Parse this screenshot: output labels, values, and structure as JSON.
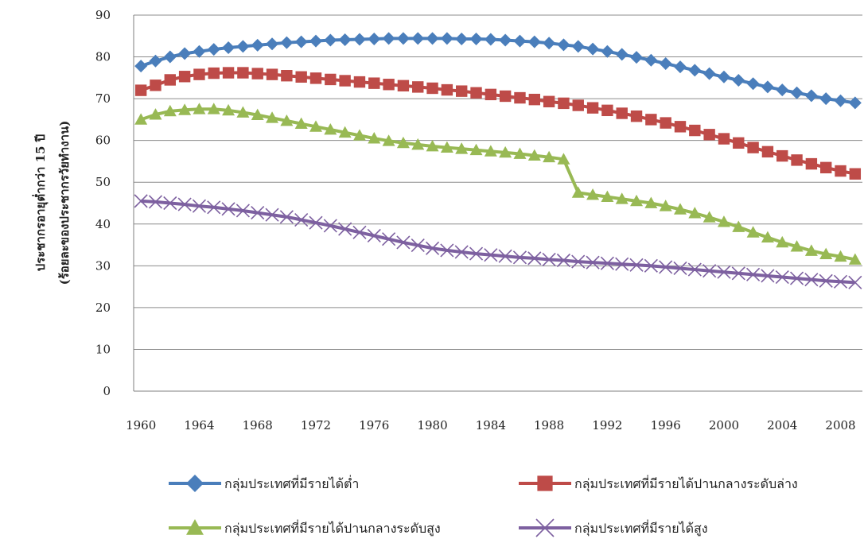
{
  "chart_data": {
    "type": "line",
    "title": "",
    "xlabel": "",
    "ylabel_line1": "ประชากรอายุต่ำกว่า 15 ปี",
    "ylabel_line2": "(ร้อยละของประชากรวัยทำงาน)",
    "x": [
      1960,
      1961,
      1962,
      1963,
      1964,
      1965,
      1966,
      1967,
      1968,
      1969,
      1970,
      1971,
      1972,
      1973,
      1974,
      1975,
      1976,
      1977,
      1978,
      1979,
      1980,
      1981,
      1982,
      1983,
      1984,
      1985,
      1986,
      1987,
      1988,
      1989,
      1990,
      1991,
      1992,
      1993,
      1994,
      1995,
      1996,
      1997,
      1998,
      1999,
      2000,
      2001,
      2002,
      2003,
      2004,
      2005,
      2006,
      2007,
      2008,
      2009
    ],
    "x_tick_labels": [
      "1960",
      "1964",
      "1968",
      "1972",
      "1976",
      "1980",
      "1984",
      "1988",
      "1992",
      "1996",
      "2000",
      "2004",
      "2008"
    ],
    "ylim": [
      0,
      90
    ],
    "y_ticks": [
      0,
      10,
      20,
      30,
      40,
      50,
      60,
      70,
      80,
      90
    ],
    "grid": true,
    "legend_position": "bottom",
    "series": [
      {
        "name": "กลุ่มประเทศที่มีรายได้ต่ำ",
        "color": "#4a7ebb",
        "marker": "diamond",
        "values": [
          77.8,
          79.0,
          80.0,
          80.8,
          81.3,
          81.8,
          82.2,
          82.5,
          82.8,
          83.1,
          83.4,
          83.6,
          83.8,
          84.0,
          84.1,
          84.2,
          84.3,
          84.4,
          84.4,
          84.4,
          84.4,
          84.4,
          84.3,
          84.3,
          84.2,
          84.0,
          83.8,
          83.6,
          83.3,
          82.9,
          82.5,
          81.9,
          81.3,
          80.6,
          79.9,
          79.2,
          78.4,
          77.6,
          76.8,
          76.0,
          75.2,
          74.4,
          73.6,
          72.8,
          72.1,
          71.4,
          70.7,
          70.0,
          69.5,
          69.0
        ]
      },
      {
        "name": "กลุ่มประเทศที่มีรายได้ปานกลางระดับล่าง",
        "color": "#be4b48",
        "marker": "square",
        "values": [
          72.0,
          73.2,
          74.5,
          75.3,
          75.8,
          76.1,
          76.2,
          76.2,
          76.0,
          75.8,
          75.5,
          75.2,
          74.9,
          74.6,
          74.3,
          74.0,
          73.7,
          73.4,
          73.1,
          72.8,
          72.5,
          72.1,
          71.8,
          71.4,
          71.0,
          70.6,
          70.2,
          69.8,
          69.3,
          68.9,
          68.4,
          67.8,
          67.2,
          66.5,
          65.8,
          65.0,
          64.2,
          63.3,
          62.4,
          61.4,
          60.4,
          59.4,
          58.3,
          57.3,
          56.3,
          55.3,
          54.4,
          53.5,
          52.7,
          52.0
        ]
      },
      {
        "name": "กลุ่มประเทศที่มีรายได้ปานกลางระดับสูง",
        "color": "#98b954",
        "marker": "triangle",
        "values": [
          65.0,
          66.2,
          67.0,
          67.3,
          67.5,
          67.5,
          67.2,
          66.7,
          66.1,
          65.4,
          64.7,
          64.0,
          63.3,
          62.6,
          61.9,
          61.2,
          60.5,
          59.9,
          59.4,
          59.0,
          58.6,
          58.3,
          58.0,
          57.7,
          57.4,
          57.1,
          56.8,
          56.4,
          56.0,
          55.5,
          47.5,
          47.0,
          46.5,
          46.0,
          45.5,
          45.0,
          44.3,
          43.5,
          42.6,
          41.6,
          40.5,
          39.3,
          38.0,
          36.8,
          35.6,
          34.6,
          33.6,
          32.8,
          32.2,
          31.5
        ]
      },
      {
        "name": "กลุ่มประเทศที่มีรายได้สูง",
        "color": "#7d60a0",
        "marker": "x",
        "values": [
          45.5,
          45.3,
          45.0,
          44.7,
          44.3,
          44.0,
          43.6,
          43.2,
          42.7,
          42.2,
          41.7,
          41.0,
          40.3,
          39.6,
          38.8,
          38.0,
          37.2,
          36.4,
          35.6,
          34.9,
          34.2,
          33.7,
          33.3,
          32.9,
          32.6,
          32.3,
          32.0,
          31.8,
          31.5,
          31.3,
          31.0,
          30.8,
          30.6,
          30.4,
          30.2,
          30.0,
          29.7,
          29.4,
          29.1,
          28.8,
          28.5,
          28.2,
          27.9,
          27.6,
          27.3,
          27.0,
          26.7,
          26.4,
          26.2,
          26.0
        ]
      }
    ]
  }
}
